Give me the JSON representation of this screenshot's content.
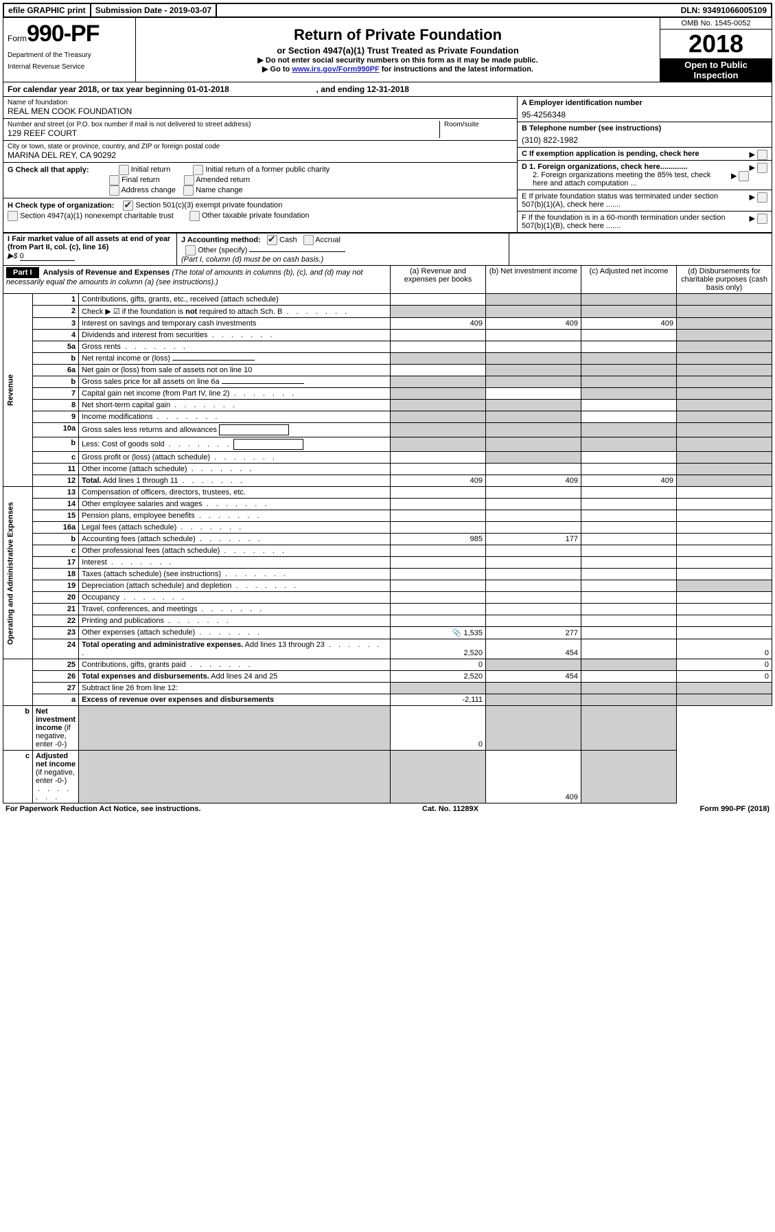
{
  "top": {
    "efile": "efile GRAPHIC print",
    "submission": "Submission Date - 2019-03-07",
    "dln": "DLN: 93491066005109"
  },
  "header": {
    "form_prefix": "Form",
    "form_number": "990-PF",
    "dept1": "Department of the Treasury",
    "dept2": "Internal Revenue Service",
    "title": "Return of Private Foundation",
    "subtitle": "or Section 4947(a)(1) Trust Treated as Private Foundation",
    "note1": "▶ Do not enter social security numbers on this form as it may be made public.",
    "note2_pre": "▶ Go to ",
    "note2_link": "www.irs.gov/Form990PF",
    "note2_post": " for instructions and the latest information.",
    "omb": "OMB No. 1545-0052",
    "year": "2018",
    "open": "Open to Public Inspection"
  },
  "calyear": {
    "text_pre": "For calendar year 2018, or tax year beginning ",
    "begin": "01-01-2018",
    "text_mid": " , and ending ",
    "end": "12-31-2018"
  },
  "entity": {
    "name_lbl": "Name of foundation",
    "name": "REAL MEN COOK FOUNDATION",
    "addr_lbl": "Number and street (or P.O. box number if mail is not delivered to street address)",
    "room_lbl": "Room/suite",
    "addr": "129 REEF COURT",
    "city_lbl": "City or town, state or province, country, and ZIP or foreign postal code",
    "city": "MARINA DEL REY, CA  90292",
    "ein_lbl": "A Employer identification number",
    "ein": "95-4256348",
    "tel_lbl": "B Telephone number (see instructions)",
    "tel": "(310) 822-1982",
    "c_lbl": "C If exemption application is pending, check here",
    "d1": "D 1. Foreign organizations, check here.............",
    "d2": "2. Foreign organizations meeting the 85% test, check here and attach computation ...",
    "e": "E  If private foundation status was terminated under section 507(b)(1)(A), check here .......",
    "f": "F  If the foundation is in a 60-month termination under section 507(b)(1)(B), check here .......",
    "g_lbl": "G Check all that apply:",
    "g_opts": [
      "Initial return",
      "Initial return of a former public charity",
      "Final return",
      "Amended return",
      "Address change",
      "Name change"
    ],
    "h_lbl": "H Check type of organization:",
    "h1": "Section 501(c)(3) exempt private foundation",
    "h2": "Section 4947(a)(1) nonexempt charitable trust",
    "h3": "Other taxable private foundation",
    "i_lbl": "I Fair market value of all assets at end of year (from Part II, col. (c), line 16)",
    "i_val": "0",
    "j_lbl": "J Accounting method:",
    "j_cash": "Cash",
    "j_accr": "Accrual",
    "j_other": "Other (specify)",
    "j_note": "(Part I, column (d) must be on cash basis.)"
  },
  "part1": {
    "label": "Part I",
    "title": "Analysis of Revenue and Expenses",
    "title_note": "(The total of amounts in columns (b), (c), and (d) may not necessarily equal the amounts in column (a) (see instructions).)",
    "col_a": "(a)   Revenue and expenses per books",
    "col_b": "(b)  Net investment income",
    "col_c": "(c)  Adjusted net income",
    "col_d": "(d)  Disbursements for charitable purposes (cash basis only)",
    "revenue_label": "Revenue",
    "expense_label": "Operating and Administrative Expenses"
  },
  "rows": [
    {
      "n": "1",
      "t": "Contributions, gifts, grants, etc., received (attach schedule)",
      "a": "",
      "b": "shade",
      "c": "shade",
      "d": "shade"
    },
    {
      "n": "2",
      "t": "Check ▶ ☑ if the foundation is <b>not</b> required to attach Sch. B",
      "dots": true,
      "a": "shade",
      "b": "shade",
      "c": "shade",
      "d": "shade"
    },
    {
      "n": "3",
      "t": "Interest on savings and temporary cash investments",
      "a": "409",
      "b": "409",
      "c": "409",
      "d": "shade"
    },
    {
      "n": "4",
      "t": "Dividends and interest from securities",
      "dots": true,
      "a": "",
      "b": "",
      "c": "",
      "d": "shade"
    },
    {
      "n": "5a",
      "t": "Gross rents",
      "dots": true,
      "a": "",
      "b": "",
      "c": "",
      "d": "shade"
    },
    {
      "n": "b",
      "t": "Net rental income or (loss)",
      "line": true,
      "a": "shade",
      "b": "shade",
      "c": "shade",
      "d": "shade"
    },
    {
      "n": "6a",
      "t": "Net gain or (loss) from sale of assets not on line 10",
      "a": "",
      "b": "shade",
      "c": "shade",
      "d": "shade"
    },
    {
      "n": "b",
      "t": "Gross sales price for all assets on line 6a",
      "line": true,
      "a": "shade",
      "b": "shade",
      "c": "shade",
      "d": "shade"
    },
    {
      "n": "7",
      "t": "Capital gain net income (from Part IV, line 2)",
      "dots": true,
      "a": "shade",
      "b": "",
      "c": "shade",
      "d": "shade"
    },
    {
      "n": "8",
      "t": "Net short-term capital gain",
      "dots": true,
      "a": "shade",
      "b": "shade",
      "c": "",
      "d": "shade"
    },
    {
      "n": "9",
      "t": "Income modifications",
      "dots": true,
      "a": "shade",
      "b": "shade",
      "c": "",
      "d": "shade"
    },
    {
      "n": "10a",
      "t": "Gross sales less returns and allowances",
      "box": true,
      "a": "shade",
      "b": "shade",
      "c": "shade",
      "d": "shade"
    },
    {
      "n": "b",
      "t": "Less: Cost of goods sold",
      "dots": true,
      "box": true,
      "a": "shade",
      "b": "shade",
      "c": "shade",
      "d": "shade"
    },
    {
      "n": "c",
      "t": "Gross profit or (loss) (attach schedule)",
      "dots": true,
      "a": "",
      "b": "shade",
      "c": "",
      "d": "shade"
    },
    {
      "n": "11",
      "t": "Other income (attach schedule)",
      "dots": true,
      "a": "",
      "b": "",
      "c": "",
      "d": "shade"
    },
    {
      "n": "12",
      "t": "<b>Total.</b> Add lines 1 through 11",
      "dots": true,
      "a": "409",
      "b": "409",
      "c": "409",
      "d": "shade"
    },
    {
      "n": "13",
      "t": "Compensation of officers, directors, trustees, etc.",
      "a": "",
      "b": "",
      "c": "",
      "d": ""
    },
    {
      "n": "14",
      "t": "Other employee salaries and wages",
      "dots": true,
      "a": "",
      "b": "",
      "c": "",
      "d": ""
    },
    {
      "n": "15",
      "t": "Pension plans, employee benefits",
      "dots": true,
      "a": "",
      "b": "",
      "c": "",
      "d": ""
    },
    {
      "n": "16a",
      "t": "Legal fees (attach schedule)",
      "dots": true,
      "a": "",
      "b": "",
      "c": "",
      "d": ""
    },
    {
      "n": "b",
      "t": "Accounting fees (attach schedule)",
      "dots": true,
      "a": "985",
      "b": "177",
      "c": "",
      "d": ""
    },
    {
      "n": "c",
      "t": "Other professional fees (attach schedule)",
      "dots": true,
      "a": "",
      "b": "",
      "c": "",
      "d": ""
    },
    {
      "n": "17",
      "t": "Interest",
      "dots": true,
      "a": "",
      "b": "",
      "c": "",
      "d": ""
    },
    {
      "n": "18",
      "t": "Taxes (attach schedule) (see instructions)",
      "dots": true,
      "a": "",
      "b": "",
      "c": "",
      "d": ""
    },
    {
      "n": "19",
      "t": "Depreciation (attach schedule) and depletion",
      "dots": true,
      "a": "",
      "b": "",
      "c": "",
      "d": "shade"
    },
    {
      "n": "20",
      "t": "Occupancy",
      "dots": true,
      "a": "",
      "b": "",
      "c": "",
      "d": ""
    },
    {
      "n": "21",
      "t": "Travel, conferences, and meetings",
      "dots": true,
      "a": "",
      "b": "",
      "c": "",
      "d": ""
    },
    {
      "n": "22",
      "t": "Printing and publications",
      "dots": true,
      "a": "",
      "b": "",
      "c": "",
      "d": ""
    },
    {
      "n": "23",
      "t": "Other expenses (attach schedule)",
      "dots": true,
      "icon": true,
      "a": "1,535",
      "b": "277",
      "c": "",
      "d": ""
    },
    {
      "n": "24",
      "t": "<b>Total operating and administrative expenses.</b> Add lines 13 through 23",
      "dots": true,
      "a": "2,520",
      "b": "454",
      "c": "",
      "d": "0"
    },
    {
      "n": "25",
      "t": "Contributions, gifts, grants paid",
      "dots": true,
      "a": "0",
      "b": "shade",
      "c": "shade",
      "d": "0"
    },
    {
      "n": "26",
      "t": "<b>Total expenses and disbursements.</b> Add lines 24 and 25",
      "a": "2,520",
      "b": "454",
      "c": "",
      "d": "0"
    },
    {
      "n": "27",
      "t": "Subtract line 26 from line 12:",
      "a": "shade",
      "b": "shade",
      "c": "shade",
      "d": "shade"
    },
    {
      "n": "a",
      "t": "<b>Excess of revenue over expenses and disbursements</b>",
      "a": "-2,111",
      "b": "shade",
      "c": "shade",
      "d": "shade"
    },
    {
      "n": "b",
      "t": "<b>Net investment income</b> (if negative, enter -0-)",
      "a": "shade",
      "b": "0",
      "c": "shade",
      "d": "shade"
    },
    {
      "n": "c",
      "t": "<b>Adjusted net income</b> (if negative, enter -0-)",
      "dots": true,
      "a": "shade",
      "b": "shade",
      "c": "409",
      "d": "shade"
    }
  ],
  "footer": {
    "left": "For Paperwork Reduction Act Notice, see instructions.",
    "mid": "Cat. No. 11289X",
    "right": "Form 990-PF (2018)"
  }
}
